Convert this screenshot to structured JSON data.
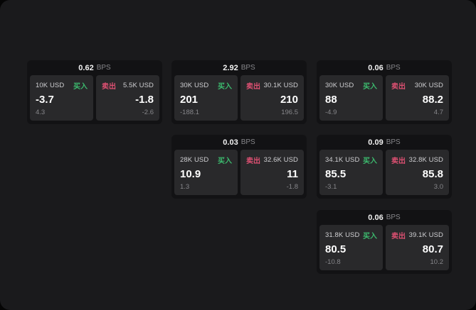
{
  "labels": {
    "bps_unit": "BPS",
    "buy": "买入",
    "sell": "卖出"
  },
  "colors": {
    "buy": "#3cba6e",
    "sell": "#dd5072",
    "background": "#1a1a1c",
    "card": "#121214",
    "panel": "#29292b"
  },
  "cards": [
    {
      "bps": "0.62",
      "buy": {
        "amount": "10K USD",
        "price": "-3.7",
        "delta": "4.3"
      },
      "sell": {
        "amount": "5.5K USD",
        "price": "-1.8",
        "delta": "-2.6"
      }
    },
    {
      "bps": "2.92",
      "buy": {
        "amount": "30K USD",
        "price": "201",
        "delta": "-188.1"
      },
      "sell": {
        "amount": "30.1K USD",
        "price": "210",
        "delta": "196.5"
      }
    },
    {
      "bps": "0.06",
      "buy": {
        "amount": "30K USD",
        "price": "88",
        "delta": "-4.9"
      },
      "sell": {
        "amount": "30K USD",
        "price": "88.2",
        "delta": "4.7"
      }
    },
    {
      "bps": "0.03",
      "buy": {
        "amount": "28K USD",
        "price": "10.9",
        "delta": "1.3"
      },
      "sell": {
        "amount": "32.6K USD",
        "price": "11",
        "delta": "-1.8"
      }
    },
    {
      "bps": "0.09",
      "buy": {
        "amount": "34.1K USD",
        "price": "85.5",
        "delta": "-3.1"
      },
      "sell": {
        "amount": "32.8K USD",
        "price": "85.8",
        "delta": "3.0"
      }
    },
    {
      "bps": "0.06",
      "buy": {
        "amount": "31.8K USD",
        "price": "80.5",
        "delta": "-10.8"
      },
      "sell": {
        "amount": "39.1K USD",
        "price": "80.7",
        "delta": "10.2"
      }
    }
  ]
}
